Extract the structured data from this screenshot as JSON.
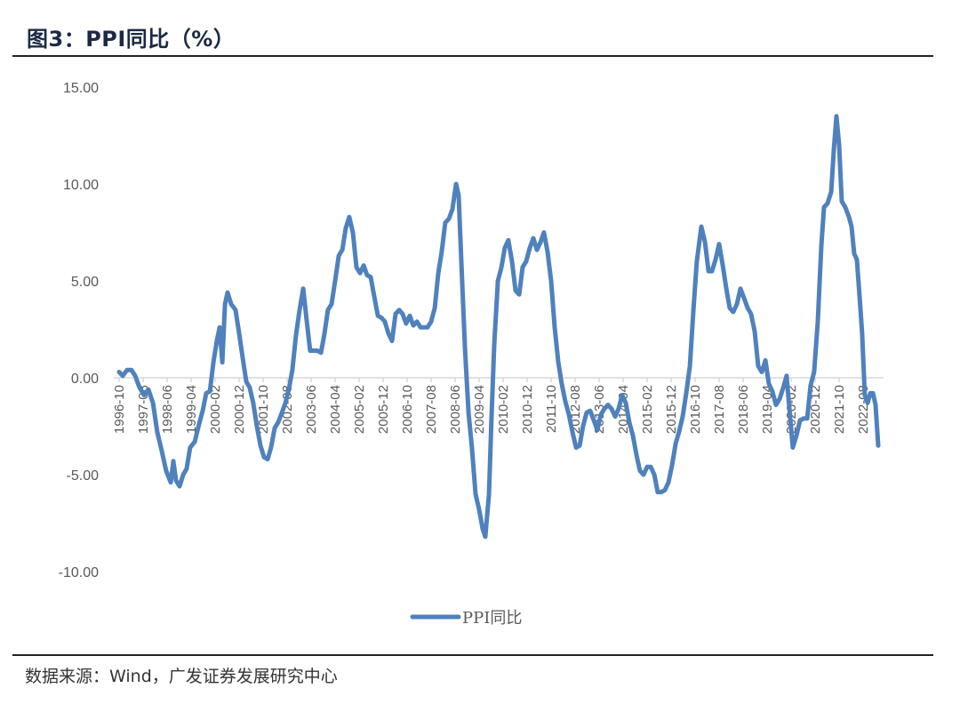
{
  "header": {
    "title": "图3：PPI同比（%）"
  },
  "footer": {
    "source": "数据来源：Wind，广发证券发展研究中心"
  },
  "colors": {
    "series": "#4f81bd",
    "axis": "#d9d9d9",
    "text": "#595959"
  },
  "chart_data": {
    "type": "line",
    "title": "PPI同比（%）",
    "xlabel": "",
    "ylabel": "",
    "ylim": [
      -10,
      15
    ],
    "yticks": [
      15,
      10,
      5,
      0,
      -5,
      -10
    ],
    "ytick_labels": [
      "15.00",
      "10.00",
      "5.00",
      "0.00",
      "-5.00",
      "-10.00"
    ],
    "x_start": "1996-10",
    "x_end": "2023-02",
    "xtick_labels": [
      "1996-10",
      "1997-08",
      "1998-06",
      "1999-04",
      "2000-02",
      "2000-12",
      "2001-10",
      "2002-08",
      "2003-06",
      "2004-04",
      "2005-02",
      "2005-12",
      "2006-10",
      "2007-08",
      "2008-06",
      "2009-04",
      "2010-02",
      "2010-12",
      "2011-10",
      "2012-08",
      "2013-06",
      "2014-04",
      "2015-02",
      "2015-12",
      "2016-10",
      "2017-08",
      "2018-06",
      "2019-04",
      "2020-02",
      "2020-12",
      "2021-10",
      "2022-08"
    ],
    "grid": false,
    "legend": {
      "position": "bottom",
      "entries": [
        "PPI同比"
      ]
    },
    "series": [
      {
        "name": "PPI同比",
        "points_month_value": [
          [
            0,
            0.3
          ],
          [
            1.5,
            0.1
          ],
          [
            3.3,
            0.4
          ],
          [
            5.2,
            0.4
          ],
          [
            6.7,
            0.1
          ],
          [
            8.5,
            -0.5
          ],
          [
            10.4,
            -0.9
          ],
          [
            12.2,
            -0.6
          ],
          [
            14.1,
            -1.3
          ],
          [
            15.9,
            -2.8
          ],
          [
            17.8,
            -3.8
          ],
          [
            19.6,
            -4.8
          ],
          [
            21.5,
            -5.4
          ],
          [
            22.6,
            -4.3
          ],
          [
            23.7,
            -5.3
          ],
          [
            25.2,
            -5.6
          ],
          [
            26.7,
            -5.0
          ],
          [
            28.1,
            -4.7
          ],
          [
            29.6,
            -3.6
          ],
          [
            31.5,
            -3.3
          ],
          [
            33.3,
            -2.4
          ],
          [
            34.8,
            -1.7
          ],
          [
            36.3,
            -0.8
          ],
          [
            37.8,
            -0.7
          ],
          [
            39.3,
            0.8
          ],
          [
            40.7,
            1.9
          ],
          [
            41.9,
            2.6
          ],
          [
            43.0,
            0.8
          ],
          [
            44.1,
            3.8
          ],
          [
            45.2,
            4.4
          ],
          [
            46.7,
            3.8
          ],
          [
            48.5,
            3.5
          ],
          [
            50.0,
            2.3
          ],
          [
            51.5,
            1.0
          ],
          [
            53.0,
            -0.2
          ],
          [
            54.4,
            -0.5
          ],
          [
            55.9,
            -1.3
          ],
          [
            57.4,
            -2.5
          ],
          [
            58.9,
            -3.5
          ],
          [
            60.4,
            -4.1
          ],
          [
            61.9,
            -4.2
          ],
          [
            63.3,
            -3.6
          ],
          [
            64.8,
            -2.6
          ],
          [
            66.3,
            -2.3
          ],
          [
            67.8,
            -1.8
          ],
          [
            69.3,
            -1.3
          ],
          [
            70.7,
            -0.6
          ],
          [
            72.2,
            0.4
          ],
          [
            73.7,
            2.2
          ],
          [
            75.2,
            3.5
          ],
          [
            76.7,
            4.6
          ],
          [
            78.1,
            3.0
          ],
          [
            79.6,
            1.4
          ],
          [
            81.1,
            1.4
          ],
          [
            82.6,
            1.4
          ],
          [
            84.1,
            1.3
          ],
          [
            85.6,
            2.3
          ],
          [
            87.0,
            3.5
          ],
          [
            88.5,
            3.8
          ],
          [
            90.0,
            5.0
          ],
          [
            91.5,
            6.3
          ],
          [
            93.0,
            6.6
          ],
          [
            94.4,
            7.7
          ],
          [
            95.9,
            8.3
          ],
          [
            97.4,
            7.5
          ],
          [
            98.9,
            5.7
          ],
          [
            100.4,
            5.4
          ],
          [
            101.9,
            5.8
          ],
          [
            103.3,
            5.3
          ],
          [
            104.8,
            5.2
          ],
          [
            106.3,
            4.2
          ],
          [
            107.8,
            3.2
          ],
          [
            109.3,
            3.1
          ],
          [
            110.7,
            2.9
          ],
          [
            112.2,
            2.3
          ],
          [
            113.7,
            1.9
          ],
          [
            115.2,
            3.3
          ],
          [
            116.7,
            3.5
          ],
          [
            118.1,
            3.3
          ],
          [
            119.6,
            2.8
          ],
          [
            121.1,
            3.2
          ],
          [
            122.6,
            2.7
          ],
          [
            124.1,
            2.9
          ],
          [
            125.6,
            2.6
          ],
          [
            127.0,
            2.6
          ],
          [
            128.5,
            2.6
          ],
          [
            130.0,
            2.9
          ],
          [
            131.5,
            3.6
          ],
          [
            133.0,
            5.4
          ],
          [
            134.4,
            6.5
          ],
          [
            135.9,
            8.0
          ],
          [
            137.4,
            8.2
          ],
          [
            138.9,
            8.7
          ],
          [
            140.4,
            10.0
          ],
          [
            141.5,
            9.4
          ],
          [
            142.6,
            6.0
          ],
          [
            144.1,
            1.5
          ],
          [
            145.6,
            -1.8
          ],
          [
            147.0,
            -3.6
          ],
          [
            148.5,
            -6.0
          ],
          [
            150.0,
            -6.8
          ],
          [
            151.5,
            -7.8
          ],
          [
            152.6,
            -8.2
          ],
          [
            154.1,
            -6.0
          ],
          [
            155.2,
            -2.0
          ],
          [
            156.3,
            1.7
          ],
          [
            157.8,
            5.0
          ],
          [
            159.3,
            5.7
          ],
          [
            160.7,
            6.7
          ],
          [
            162.2,
            7.1
          ],
          [
            163.7,
            6.0
          ],
          [
            165.2,
            4.5
          ],
          [
            166.7,
            4.3
          ],
          [
            168.1,
            5.7
          ],
          [
            169.6,
            6.0
          ],
          [
            171.1,
            6.7
          ],
          [
            172.6,
            7.2
          ],
          [
            174.1,
            6.6
          ],
          [
            175.6,
            7.0
          ],
          [
            177.0,
            7.5
          ],
          [
            178.5,
            6.5
          ],
          [
            180.0,
            5.0
          ],
          [
            181.5,
            2.6
          ],
          [
            183.0,
            0.8
          ],
          [
            184.4,
            -0.3
          ],
          [
            185.9,
            -1.2
          ],
          [
            187.4,
            -1.9
          ],
          [
            188.9,
            -2.8
          ],
          [
            190.4,
            -3.6
          ],
          [
            191.9,
            -3.5
          ],
          [
            193.3,
            -2.5
          ],
          [
            194.8,
            -1.8
          ],
          [
            196.3,
            -1.7
          ],
          [
            197.8,
            -2.2
          ],
          [
            199.3,
            -2.7
          ],
          [
            200.7,
            -1.9
          ],
          [
            202.2,
            -1.6
          ],
          [
            203.7,
            -1.4
          ],
          [
            205.2,
            -1.6
          ],
          [
            206.7,
            -2.0
          ],
          [
            208.1,
            -1.6
          ],
          [
            209.6,
            -0.9
          ],
          [
            211.1,
            -1.3
          ],
          [
            212.6,
            -2.3
          ],
          [
            214.1,
            -3.0
          ],
          [
            215.6,
            -4.0
          ],
          [
            217.0,
            -4.8
          ],
          [
            218.5,
            -5.0
          ],
          [
            220.0,
            -4.6
          ],
          [
            221.5,
            -4.6
          ],
          [
            223.0,
            -5.0
          ],
          [
            224.4,
            -5.9
          ],
          [
            225.9,
            -5.9
          ],
          [
            227.4,
            -5.8
          ],
          [
            228.9,
            -5.4
          ],
          [
            230.4,
            -4.5
          ],
          [
            231.9,
            -3.4
          ],
          [
            233.3,
            -2.8
          ],
          [
            234.8,
            -2.0
          ],
          [
            236.3,
            -0.8
          ],
          [
            237.8,
            0.6
          ],
          [
            239.3,
            3.5
          ],
          [
            240.7,
            6.0
          ],
          [
            242.6,
            7.8
          ],
          [
            244.1,
            7.0
          ],
          [
            245.6,
            5.5
          ],
          [
            247.0,
            5.5
          ],
          [
            248.5,
            6.1
          ],
          [
            250.0,
            6.9
          ],
          [
            251.5,
            5.8
          ],
          [
            253.0,
            4.6
          ],
          [
            254.4,
            3.6
          ],
          [
            255.9,
            3.4
          ],
          [
            257.4,
            3.8
          ],
          [
            258.9,
            4.6
          ],
          [
            260.4,
            4.1
          ],
          [
            261.9,
            3.6
          ],
          [
            263.3,
            3.3
          ],
          [
            264.8,
            2.4
          ],
          [
            266.3,
            0.6
          ],
          [
            267.8,
            0.3
          ],
          [
            269.3,
            0.9
          ],
          [
            270.7,
            -0.3
          ],
          [
            272.2,
            -0.7
          ],
          [
            273.7,
            -1.4
          ],
          [
            275.2,
            -1.1
          ],
          [
            277.0,
            -0.4
          ],
          [
            278.1,
            0.1
          ],
          [
            279.3,
            -1.6
          ],
          [
            280.7,
            -3.6
          ],
          [
            282.2,
            -3.0
          ],
          [
            283.7,
            -2.2
          ],
          [
            285.2,
            -2.1
          ],
          [
            286.7,
            -2.1
          ],
          [
            288.1,
            -0.4
          ],
          [
            289.6,
            0.3
          ],
          [
            291.1,
            2.9
          ],
          [
            292.6,
            6.8
          ],
          [
            293.7,
            8.8
          ],
          [
            295.2,
            9.0
          ],
          [
            296.7,
            9.6
          ],
          [
            297.8,
            11.8
          ],
          [
            298.9,
            13.5
          ],
          [
            300.0,
            12.0
          ],
          [
            301.1,
            9.1
          ],
          [
            302.6,
            8.8
          ],
          [
            304.1,
            8.3
          ],
          [
            305.2,
            7.8
          ],
          [
            306.3,
            6.4
          ],
          [
            307.4,
            6.1
          ],
          [
            308.5,
            4.2
          ],
          [
            309.6,
            2.3
          ],
          [
            310.7,
            -0.9
          ],
          [
            311.9,
            -1.3
          ],
          [
            313.0,
            -0.8
          ],
          [
            314.1,
            -0.8
          ],
          [
            315.2,
            -1.4
          ],
          [
            316.3,
            -3.5
          ]
        ]
      }
    ]
  }
}
